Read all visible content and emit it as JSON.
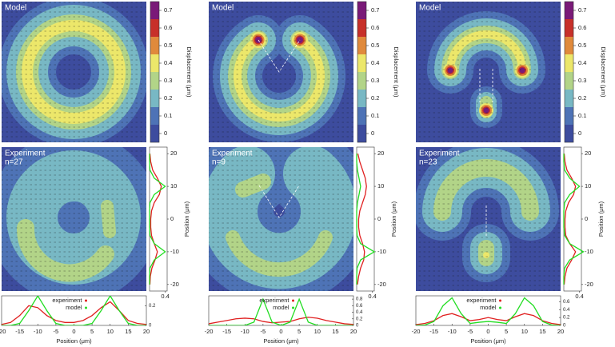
{
  "columns": [
    {
      "model": {
        "title": "Model"
      },
      "colorbar": {
        "label": "Displacement (μm)",
        "ticks": [
          0,
          0.1,
          0.2,
          0.3,
          0.4,
          0.5,
          0.6,
          0.7
        ],
        "colors": [
          "#3d4c9e",
          "#4e73b6",
          "#78b8c4",
          "#b2d488",
          "#ece76a",
          "#e08a3c",
          "#c7302a",
          "#7a1a78"
        ]
      },
      "experiment": {
        "title": "Experiment",
        "subtitle": "n=27"
      },
      "side_profile": {
        "ylabel": "Position (μm)",
        "positions": [
          -20,
          -17.5,
          -15,
          -12.5,
          -10,
          -7.5,
          -5,
          -2.5,
          0,
          2.5,
          5,
          7.5,
          10,
          12.5,
          15,
          17.5,
          20
        ],
        "ylim": [
          -22,
          22
        ],
        "yticks": [
          -20,
          -10,
          0,
          10,
          20
        ],
        "xlim": [
          0,
          0.45
        ],
        "xticks": [
          0.4
        ],
        "series": [
          {
            "color": "#e02020",
            "values": [
              0.01,
              0.02,
              0.06,
              0.14,
              0.2,
              0.12,
              0.05,
              0.03,
              0.03,
              0.05,
              0.12,
              0.25,
              0.3,
              0.2,
              0.08,
              0.03,
              0.01
            ]
          },
          {
            "color": "#22dd22",
            "values": [
              0,
              0,
              0.01,
              0.12,
              0.4,
              0.12,
              0.01,
              0,
              0,
              0,
              0.01,
              0.12,
              0.4,
              0.12,
              0.01,
              0,
              0
            ]
          }
        ]
      },
      "bottom_profile": {
        "xlabel": "Position (μm)",
        "x": [
          -20,
          -17.5,
          -15,
          -12.5,
          -10,
          -7.5,
          -5,
          -2.5,
          0,
          2.5,
          5,
          7.5,
          10,
          12.5,
          15,
          17.5,
          20
        ],
        "xlim": [
          -20,
          20
        ],
        "xticks": [
          -20,
          -15,
          -10,
          -5,
          0,
          5,
          10,
          15,
          20
        ],
        "ylim": [
          0,
          0.3
        ],
        "yticks": [
          0,
          0.2
        ],
        "series": [
          {
            "name": "experiment",
            "color": "#e02020",
            "values": [
              0.01,
              0.03,
              0.1,
              0.2,
              0.18,
              0.1,
              0.05,
              0.03,
              0.03,
              0.05,
              0.1,
              0.18,
              0.24,
              0.15,
              0.05,
              0.02,
              0.01
            ]
          },
          {
            "name": "model",
            "color": "#22dd22",
            "values": [
              0,
              0,
              0.02,
              0.15,
              0.3,
              0.15,
              0.02,
              0,
              0,
              0,
              0.02,
              0.15,
              0.3,
              0.15,
              0.02,
              0,
              0
            ]
          }
        ]
      }
    },
    {
      "model": {
        "title": "Model"
      },
      "colorbar": {
        "label": "Displacement (μm)",
        "ticks": [
          0,
          0.1,
          0.2,
          0.3,
          0.4,
          0.5,
          0.6,
          0.7
        ],
        "colors": [
          "#3d4c9e",
          "#4e73b6",
          "#78b8c4",
          "#b2d488",
          "#ece76a",
          "#e08a3c",
          "#c7302a",
          "#7a1a78"
        ]
      },
      "experiment": {
        "title": "Experiment",
        "subtitle": "n=9"
      },
      "side_profile": {
        "ylabel": "Position (μm)",
        "positions": [
          -20,
          -17.5,
          -15,
          -12.5,
          -10,
          -7.5,
          -5,
          -2.5,
          0,
          2.5,
          5,
          7.5,
          10,
          12.5,
          15,
          17.5,
          20
        ],
        "ylim": [
          -22,
          22
        ],
        "yticks": [
          -20,
          -10,
          0,
          10,
          20
        ],
        "xlim": [
          0,
          0.45
        ],
        "xticks": [
          0.4
        ],
        "series": [
          {
            "color": "#e02020",
            "values": [
              0.02,
              0.05,
              0.1,
              0.18,
              0.2,
              0.15,
              0.08,
              0.05,
              0.05,
              0.08,
              0.15,
              0.22,
              0.25,
              0.22,
              0.15,
              0.08,
              0.03
            ]
          },
          {
            "color": "#22dd22",
            "values": [
              0,
              0,
              0.01,
              0.1,
              0.45,
              0.1,
              0.01,
              0,
              0,
              0,
              0.02,
              0.06,
              0.1,
              0.06,
              0.02,
              0,
              0
            ]
          }
        ]
      },
      "bottom_profile": {
        "xlabel": "Position (μm)",
        "x": [
          -20,
          -17.5,
          -15,
          -12.5,
          -10,
          -7.5,
          -5,
          -2.5,
          0,
          2.5,
          5,
          7.5,
          10,
          12.5,
          15,
          17.5,
          20
        ],
        "xlim": [
          -20,
          20
        ],
        "xticks": [
          -20,
          -15,
          -10,
          -5,
          0,
          5,
          10,
          15,
          20
        ],
        "ylim": [
          0,
          0.9
        ],
        "yticks": [
          0,
          0.2,
          0.4,
          0.6,
          0.8
        ],
        "series": [
          {
            "name": "experiment",
            "color": "#e02020",
            "values": [
              0.05,
              0.1,
              0.15,
              0.2,
              0.22,
              0.2,
              0.12,
              0.08,
              0.1,
              0.12,
              0.2,
              0.25,
              0.22,
              0.15,
              0.1,
              0.05,
              0.03
            ]
          },
          {
            "name": "model",
            "color": "#22dd22",
            "values": [
              0,
              0,
              0,
              0,
              0,
              0.1,
              0.8,
              0.1,
              0,
              0.1,
              0.8,
              0.1,
              0,
              0,
              0,
              0,
              0
            ]
          }
        ]
      }
    },
    {
      "model": {
        "title": "Model"
      },
      "colorbar": {
        "label": "Displacement (μm)",
        "ticks": [
          0,
          0.1,
          0.2,
          0.3,
          0.4,
          0.5,
          0.6,
          0.7
        ],
        "colors": [
          "#3d4c9e",
          "#4e73b6",
          "#78b8c4",
          "#b2d488",
          "#ece76a",
          "#e08a3c",
          "#c7302a",
          "#7a1a78"
        ]
      },
      "experiment": {
        "title": "Experiment",
        "subtitle": "n=23"
      },
      "side_profile": {
        "ylabel": "Position (μm)",
        "positions": [
          -20,
          -17.5,
          -15,
          -12.5,
          -10,
          -7.5,
          -5,
          -2.5,
          0,
          2.5,
          5,
          7.5,
          10,
          12.5,
          15,
          17.5,
          20
        ],
        "ylim": [
          -22,
          22
        ],
        "yticks": [
          -20,
          -10,
          0,
          10,
          20
        ],
        "xlim": [
          0,
          0.45
        ],
        "xticks": [
          0.4
        ],
        "series": [
          {
            "color": "#e02020",
            "values": [
              0.01,
              0.03,
              0.08,
              0.2,
              0.3,
              0.15,
              0.05,
              0.03,
              0.03,
              0.05,
              0.12,
              0.25,
              0.3,
              0.2,
              0.08,
              0.03,
              0.01
            ]
          },
          {
            "color": "#22dd22",
            "values": [
              0,
              0,
              0.02,
              0.15,
              0.5,
              0.15,
              0.02,
              0,
              0,
              0,
              0.02,
              0.15,
              0.4,
              0.15,
              0.02,
              0,
              0
            ]
          }
        ]
      },
      "bottom_profile": {
        "xlabel": "Position (μm)",
        "x": [
          -20,
          -17.5,
          -15,
          -12.5,
          -10,
          -7.5,
          -5,
          -2.5,
          0,
          2.5,
          5,
          7.5,
          10,
          12.5,
          15,
          17.5,
          20
        ],
        "xlim": [
          -20,
          20
        ],
        "xticks": [
          -20,
          -15,
          -10,
          -5,
          0,
          5,
          10,
          15,
          20
        ],
        "ylim": [
          0,
          0.75
        ],
        "yticks": [
          0,
          0.2,
          0.4,
          0.6
        ],
        "series": [
          {
            "name": "experiment",
            "color": "#e02020",
            "values": [
              0.02,
              0.05,
              0.12,
              0.25,
              0.3,
              0.22,
              0.12,
              0.15,
              0.2,
              0.15,
              0.12,
              0.22,
              0.3,
              0.25,
              0.12,
              0.05,
              0.02
            ]
          },
          {
            "name": "model",
            "color": "#22dd22",
            "values": [
              0,
              0.01,
              0.1,
              0.5,
              0.7,
              0.3,
              0.05,
              0.08,
              0.1,
              0.08,
              0.05,
              0.3,
              0.7,
              0.5,
              0.1,
              0.01,
              0
            ]
          }
        ]
      }
    }
  ]
}
